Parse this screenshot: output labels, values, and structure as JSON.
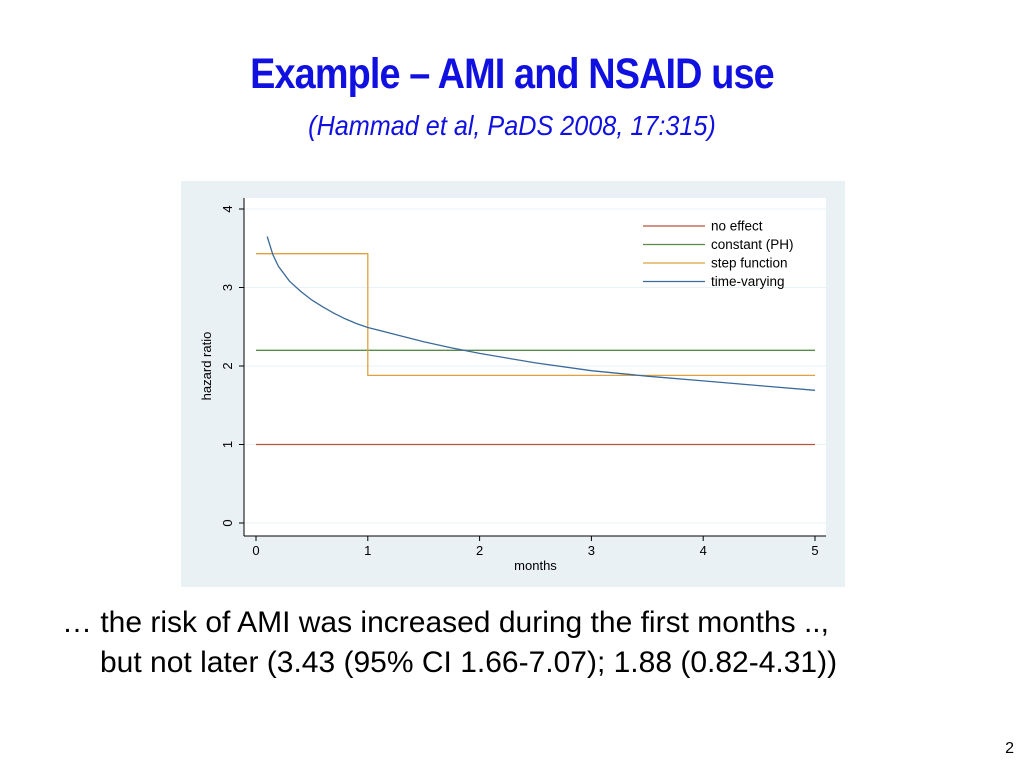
{
  "slide": {
    "title": "Example – AMI and NSAID use",
    "subtitle": "(Hammad et al, PaDS 2008, 17:315)",
    "caption_line1": "… the risk of AMI was increased during the first months ..,",
    "caption_line2": "but not later (3.43 (95% CI 1.66-7.07); 1.88 (0.82-4.31))",
    "page_number": "2"
  },
  "chart_data": {
    "type": "line",
    "xlabel": "months",
    "ylabel": "hazard ratio",
    "xlim": [
      0,
      5
    ],
    "ylim": [
      0,
      4
    ],
    "xticks": [
      "0",
      "1",
      "2",
      "3",
      "4",
      "5"
    ],
    "yticks": [
      "0",
      "1",
      "2",
      "3",
      "4"
    ],
    "grid": true,
    "legend_position": "top-right",
    "series": [
      {
        "name": "no effect",
        "color": "#b5533c",
        "x": [
          0,
          5
        ],
        "y": [
          1,
          1
        ]
      },
      {
        "name": "constant (PH)",
        "color": "#5a8a4a",
        "x": [
          0,
          5
        ],
        "y": [
          2.2,
          2.2
        ]
      },
      {
        "name": "step function",
        "color": "#e0a040",
        "x": [
          0,
          1,
          1,
          5
        ],
        "y": [
          3.43,
          3.43,
          1.88,
          1.88
        ]
      },
      {
        "name": "time-varying",
        "color": "#3a6a9a",
        "x": [
          0.1,
          0.15,
          0.2,
          0.3,
          0.4,
          0.5,
          0.6,
          0.7,
          0.8,
          0.9,
          1.0,
          1.25,
          1.5,
          1.75,
          2.0,
          2.5,
          3.0,
          3.5,
          4.0,
          4.5,
          5.0
        ],
        "y": [
          3.65,
          3.42,
          3.27,
          3.08,
          2.95,
          2.84,
          2.75,
          2.67,
          2.6,
          2.54,
          2.49,
          2.4,
          2.31,
          2.23,
          2.16,
          2.04,
          1.94,
          1.87,
          1.81,
          1.75,
          1.69
        ]
      }
    ]
  }
}
